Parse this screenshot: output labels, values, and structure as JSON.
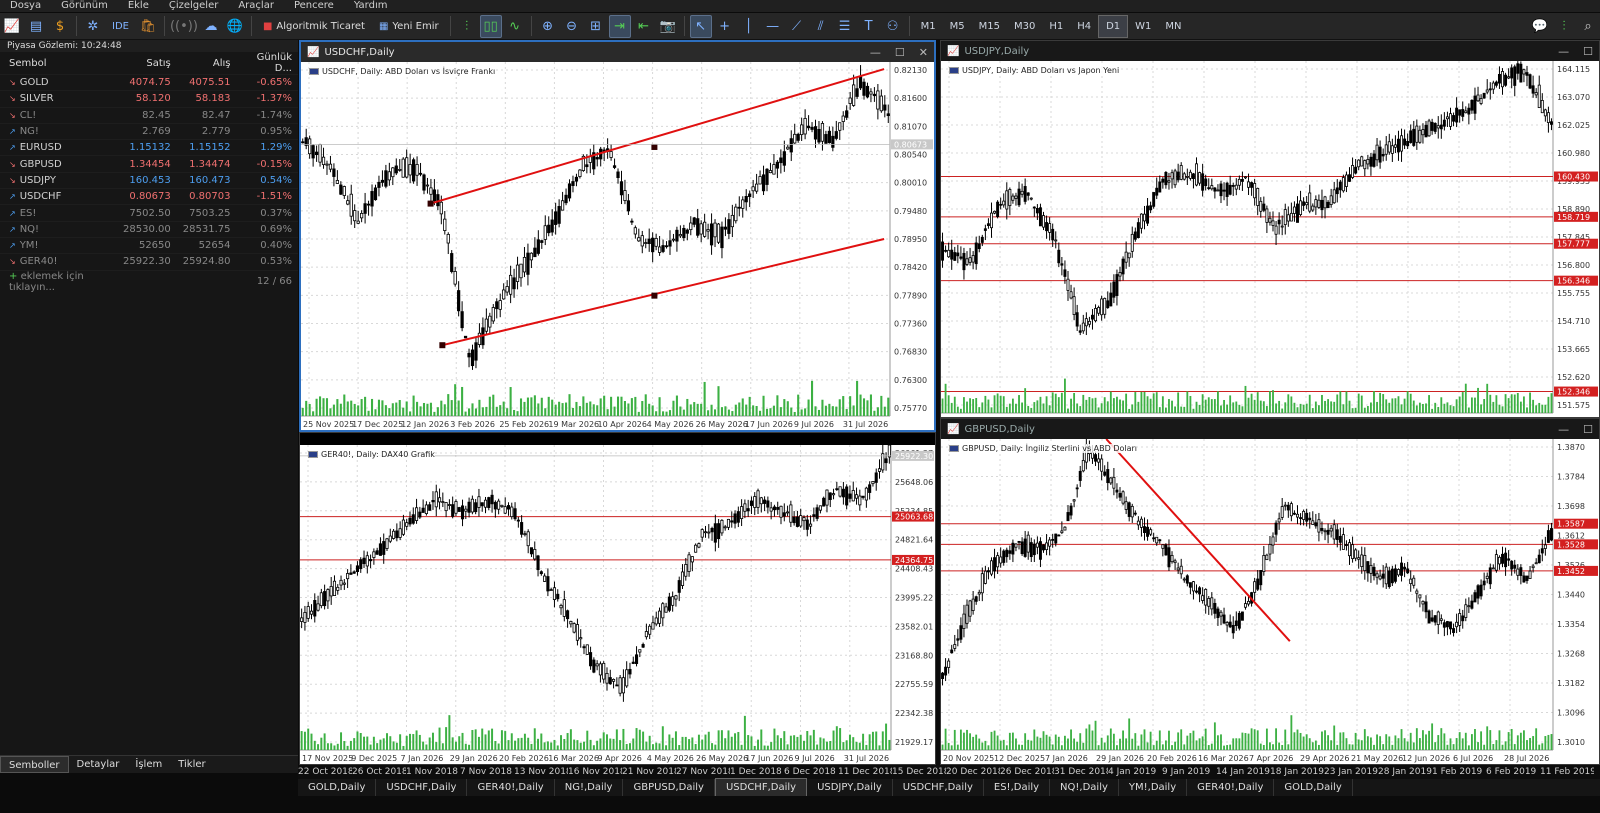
{
  "menu": [
    "Dosya",
    "Görünüm",
    "Ekle",
    "Çizelgeler",
    "Araçlar",
    "Pencere",
    "Yardım"
  ],
  "toolbar": {
    "algo_label": "Algoritmik Ticaret",
    "new_order_label": "Yeni Emir",
    "ide_label": "IDE",
    "timeframes": [
      "M1",
      "M5",
      "M15",
      "M30",
      "H1",
      "H4",
      "D1",
      "W1",
      "MN"
    ],
    "active_timeframe": "D1"
  },
  "market_watch": {
    "title": "Piyasa Gözlemi: 10:24:48",
    "headers": [
      "Sembol",
      "Satış",
      "Alış",
      "Günlük D..."
    ],
    "rows": [
      {
        "symbol": "GOLD",
        "bid": "4074.75",
        "ask": "4075.51",
        "change": "-0.65%",
        "dir": "dn",
        "dim": false
      },
      {
        "symbol": "SILVER",
        "bid": "58.120",
        "ask": "58.183",
        "change": "-1.37%",
        "dir": "dn",
        "dim": false
      },
      {
        "symbol": "CL!",
        "bid": "82.45",
        "ask": "82.47",
        "change": "-1.74%",
        "dir": "dn",
        "dim": true
      },
      {
        "symbol": "NG!",
        "bid": "2.769",
        "ask": "2.779",
        "change": "0.95%",
        "dir": "up",
        "dim": true
      },
      {
        "symbol": "EURUSD",
        "bid": "1.15132",
        "ask": "1.15152",
        "change": "1.29%",
        "dir": "up",
        "dim": false
      },
      {
        "symbol": "GBPUSD",
        "bid": "1.34454",
        "ask": "1.34474",
        "change": "-0.15%",
        "dir": "dn",
        "dim": false
      },
      {
        "symbol": "USDJPY",
        "bid": "160.453",
        "ask": "160.473",
        "change": "0.54%",
        "dir": "dn",
        "dim": false
      },
      {
        "symbol": "USDCHF",
        "bid": "0.80673",
        "ask": "0.80703",
        "change": "-1.51%",
        "dir": "up",
        "dim": false
      },
      {
        "symbol": "ES!",
        "bid": "7502.50",
        "ask": "7503.25",
        "change": "0.37%",
        "dir": "up",
        "dim": true
      },
      {
        "symbol": "NQ!",
        "bid": "28530.00",
        "ask": "28531.75",
        "change": "0.69%",
        "dir": "up",
        "dim": true
      },
      {
        "symbol": "YM!",
        "bid": "52650",
        "ask": "52654",
        "change": "0.40%",
        "dir": "up",
        "dim": true
      },
      {
        "symbol": "GER40!",
        "bid": "25922.30",
        "ask": "25924.80",
        "change": "0.53%",
        "dir": "dn",
        "dim": true
      }
    ],
    "add_label": "eklemek için tıklayın...",
    "count": "12 / 66",
    "tabs": [
      "Semboller",
      "Detaylar",
      "İşlem",
      "Tikler"
    ],
    "active_tab": "Semboller"
  },
  "charts": {
    "usdchf": {
      "window_title": "USDCHF,Daily",
      "chart_title": "USDCHF, Daily:  ABD Doları vs İsviçre Frankı",
      "price_labels": [
        "0.82130",
        "0.81600",
        "0.81070",
        "0.80540",
        "0.80010",
        "0.79480",
        "0.78950",
        "0.78420",
        "0.77890",
        "0.77360",
        "0.76830",
        "0.76300",
        "0.75770"
      ],
      "date_labels": [
        "25 Nov 2025",
        "17 Dec 2025",
        "12 Jan 2026",
        "3 Feb 2026",
        "25 Feb 2026",
        "19 Mar 2026",
        "10 Apr 2026",
        "4 May 2026",
        "26 May 2026",
        "17 Jun 2026",
        "9 Jul 2026",
        "31 Jul 2026"
      ],
      "current_price": "0.80673"
    },
    "usdjpy": {
      "window_title": "USDJPY,Daily",
      "chart_title": "USDJPY, Daily:  ABD Doları vs Japon Yeni",
      "price_labels": [
        "164.115",
        "163.070",
        "162.025",
        "160.980",
        "159.935",
        "158.890",
        "157.845",
        "156.800",
        "155.755",
        "154.710",
        "153.665",
        "152.620",
        "151.575"
      ],
      "levels": [
        "160.430",
        "158.719",
        "157.777",
        "156.346",
        "152.346"
      ]
    },
    "ger40": {
      "window_title": "GER40!,Daily",
      "chart_title": "GER40!, Daily:  DAX40 Grafik",
      "price_labels": [
        "26061.27",
        "25648.06",
        "25234.85",
        "24821.64",
        "24408.43",
        "23995.22",
        "23582.01",
        "23168.80",
        "22755.59",
        "22342.38",
        "21929.17"
      ],
      "levels": [
        "25063.68",
        "24364.75"
      ],
      "current_price": "25922.30",
      "date_labels": [
        "17 Nov 2025",
        "9 Dec 2025",
        "7 Jan 2026",
        "29 Jan 2026",
        "20 Feb 2026",
        "16 Mar 2026",
        "9 Apr 2026",
        "4 May 2026",
        "26 May 2026",
        "17 Jun 2026",
        "9 Jul 2026",
        "31 Jul 2026"
      ]
    },
    "gbpusd": {
      "window_title": "GBPUSD,Daily",
      "chart_title": "GBPUSD, Daily:  İngiliz Sterlini vs ABD Doları",
      "price_labels": [
        "1.3870",
        "1.3784",
        "1.3698",
        "1.3612",
        "1.3526",
        "1.3440",
        "1.3354",
        "1.3268",
        "1.3182",
        "1.3096",
        "1.3010"
      ],
      "levels": [
        "1.3587",
        "1.3528",
        "1.3452"
      ],
      "date_labels": [
        "20 Nov 2025",
        "12 Dec 2025",
        "7 Jan 2026",
        "29 Jan 2026",
        "20 Feb 2026",
        "16 Mar 2026",
        "7 Apr 2026",
        "29 Apr 2026",
        "21 May 2026",
        "12 Jun 2026",
        "6 Jul 2026",
        "28 Jul 2026"
      ]
    }
  },
  "bottom_dates": [
    "22 Oct 2018",
    "26 Oct 2018",
    "1 Nov 2018",
    "7 Nov 2018",
    "13 Nov 2018",
    "16 Nov 2018",
    "21 Nov 2018",
    "27 Nov 2018",
    "1 Dec 2018",
    "6 Dec 2018",
    "11 Dec 2018",
    "15 Dec 2018",
    "20 Dec 2018",
    "26 Dec 2018",
    "31 Dec 2018",
    "4 Jan 2019",
    "9 Jan 2019",
    "14 Jan 2019",
    "18 Jan 2019",
    "23 Jan 2019",
    "28 Jan 2019",
    "1 Feb 2019",
    "6 Feb 2019",
    "11 Feb 2019"
  ],
  "window_tabs": [
    "GOLD,Daily",
    "USDCHF,Daily",
    "GER40!,Daily",
    "NG!,Daily",
    "GBPUSD,Daily",
    "USDCHF,Daily",
    "USDJPY,Daily",
    "USDCHF,Daily",
    "ES!,Daily",
    "NQ!,Daily",
    "YM!,Daily",
    "GER40!,Daily",
    "GOLD,Daily"
  ],
  "active_window_tab": 5
}
